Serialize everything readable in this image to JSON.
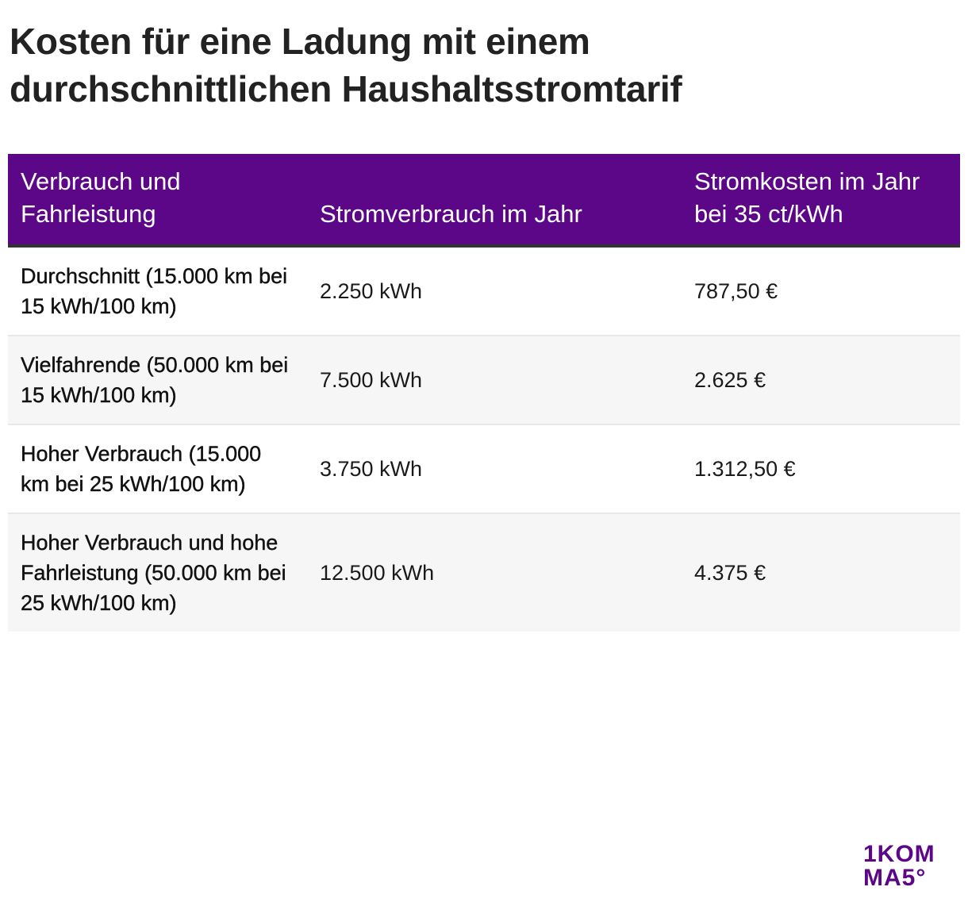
{
  "title": {
    "line1": "Kosten für eine Ladung mit einem",
    "line2": "durchschnittlichen Haushaltsstromtarif"
  },
  "table": {
    "headers": [
      "Verbrauch und Fahrleistung",
      "Stromverbrauch im Jahr",
      "Stromkosten im Jahr bei 35 ct/kWh"
    ],
    "rows": [
      [
        "Durchschnitt (15.000 km bei 15 kWh/100 km)",
        "2.250 kWh",
        "787,50 €"
      ],
      [
        "Vielfahrende (50.000 km bei 15 kWh/100 km)",
        "7.500 kWh",
        "2.625 €"
      ],
      [
        "Hoher Verbrauch (15.000 km bei 25 kWh/100 km)",
        "3.750 kWh",
        "1.312,50 €"
      ],
      [
        "Hoher Verbrauch und hohe Fahrleistung (50.000 km bei 25 kWh/100 km)",
        "12.500 kWh",
        "4.375 €"
      ]
    ]
  },
  "logo": {
    "line1": "1KOM",
    "line2": "MA5°"
  },
  "colors": {
    "header_bg": "#5c0788",
    "logo": "#5c0788"
  }
}
